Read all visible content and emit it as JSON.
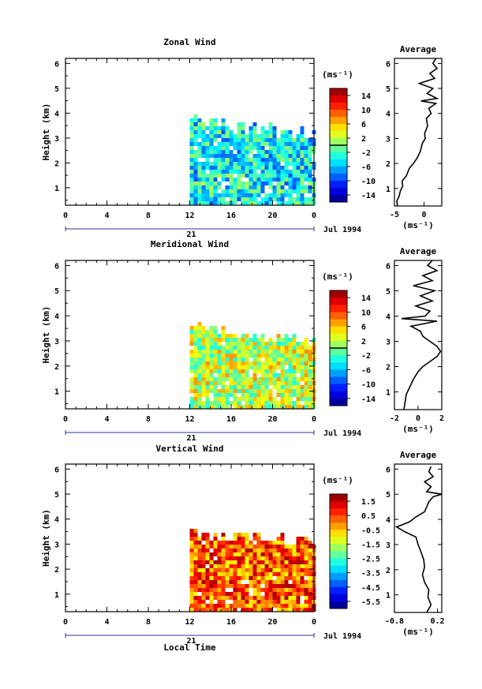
{
  "figure": {
    "date_label": "Jul 1994",
    "day_label": "21",
    "xlabel": "Local Time",
    "ylabel": "Height (km)",
    "avg_title": "Average",
    "units_label": "(ms⁻¹)",
    "avg_xlabel": "(ms⁻¹)"
  },
  "chart_data": [
    {
      "type": "heatmap",
      "name": "zonal",
      "title": "Zonal Wind",
      "x_ticks": [
        "0",
        "4",
        "8",
        "12",
        "16",
        "20",
        "0"
      ],
      "y_ticks": [
        "1",
        "2",
        "3",
        "4",
        "5",
        "6"
      ],
      "xlim": [
        0,
        24
      ],
      "ylim": [
        0.3,
        6.2
      ],
      "colorbar": {
        "min": -16,
        "max": 16,
        "ticks": [
          "14",
          "10",
          "6",
          "2",
          "-2",
          "-6",
          "-10",
          "-14"
        ],
        "zero_line": 0
      },
      "data_region": {
        "x_start": 12,
        "x_end": 24,
        "top_km": [
          3.8,
          3.2
        ],
        "typical_value": -4,
        "colormap": "jet"
      },
      "average": {
        "xlim": [
          -5,
          3
        ],
        "x_ticks": [
          "-5",
          "0"
        ],
        "profile": [
          [
            0.3,
            -4.5
          ],
          [
            0.5,
            -4.6
          ],
          [
            0.7,
            -4.2
          ],
          [
            0.9,
            -4.0
          ],
          [
            1.1,
            -3.6
          ],
          [
            1.3,
            -3.7
          ],
          [
            1.5,
            -3.0
          ],
          [
            1.8,
            -2.5
          ],
          [
            2.0,
            -1.8
          ],
          [
            2.2,
            -1.2
          ],
          [
            2.5,
            -0.6
          ],
          [
            2.8,
            -0.3
          ],
          [
            3.0,
            0.2
          ],
          [
            3.2,
            0.1
          ],
          [
            3.5,
            0.6
          ],
          [
            3.8,
            0.4
          ],
          [
            4.0,
            1.2
          ],
          [
            4.2,
            0.8
          ],
          [
            4.4,
            2.0
          ],
          [
            4.5,
            -0.5
          ],
          [
            4.6,
            2.2
          ],
          [
            4.8,
            0.5
          ],
          [
            5.0,
            1.5
          ],
          [
            5.2,
            -0.8
          ],
          [
            5.4,
            1.8
          ],
          [
            5.6,
            1.0
          ],
          [
            5.8,
            2.2
          ],
          [
            6.0,
            1.5
          ],
          [
            6.2,
            2.0
          ]
        ]
      }
    },
    {
      "type": "heatmap",
      "name": "meridional",
      "title": "Meridional Wind",
      "x_ticks": [
        "0",
        "4",
        "8",
        "12",
        "16",
        "20",
        "0"
      ],
      "y_ticks": [
        "1",
        "2",
        "3",
        "4",
        "5",
        "6"
      ],
      "xlim": [
        0,
        24
      ],
      "ylim": [
        0.3,
        6.2
      ],
      "colorbar": {
        "min": -16,
        "max": 16,
        "ticks": [
          "14",
          "10",
          "6",
          "2",
          "-2",
          "-6",
          "-10",
          "-14"
        ],
        "zero_line": 0
      },
      "data_region": {
        "x_start": 12,
        "x_end": 24,
        "top_km": [
          3.6,
          3.0
        ],
        "typical_value": 2,
        "colormap": "jet"
      },
      "average": {
        "xlim": [
          -2,
          2
        ],
        "x_ticks": [
          "-2",
          "0",
          "2"
        ],
        "profile": [
          [
            0.3,
            -1.2
          ],
          [
            0.6,
            -1.1
          ],
          [
            0.9,
            -1.0
          ],
          [
            1.2,
            -0.7
          ],
          [
            1.5,
            -0.4
          ],
          [
            1.8,
            0.0
          ],
          [
            2.0,
            0.4
          ],
          [
            2.2,
            1.0
          ],
          [
            2.4,
            1.6
          ],
          [
            2.6,
            1.9
          ],
          [
            2.8,
            1.6
          ],
          [
            3.0,
            1.0
          ],
          [
            3.2,
            0.4
          ],
          [
            3.4,
            0.2
          ],
          [
            3.6,
            -0.6
          ],
          [
            3.8,
            1.6
          ],
          [
            3.9,
            -1.4
          ],
          [
            4.0,
            0.6
          ],
          [
            4.2,
            1.0
          ],
          [
            4.4,
            -0.2
          ],
          [
            4.6,
            1.2
          ],
          [
            4.8,
            0.2
          ],
          [
            5.0,
            1.4
          ],
          [
            5.2,
            -0.4
          ],
          [
            5.4,
            1.2
          ],
          [
            5.6,
            0.4
          ],
          [
            5.8,
            1.6
          ],
          [
            6.0,
            0.8
          ],
          [
            6.2,
            1.2
          ]
        ]
      }
    },
    {
      "type": "heatmap",
      "name": "vertical",
      "title": "Vertical Wind",
      "x_ticks": [
        "0",
        "4",
        "8",
        "12",
        "16",
        "20",
        "0"
      ],
      "y_ticks": [
        "1",
        "2",
        "3",
        "4",
        "5",
        "6"
      ],
      "xlim": [
        0,
        24
      ],
      "ylim": [
        0.3,
        6.2
      ],
      "colorbar": {
        "min": -6,
        "max": 2,
        "ticks": [
          "1.5",
          "0.5",
          "-0.5",
          "-1.5",
          "-2.5",
          "-3.5",
          "-4.5",
          "-5.5"
        ],
        "zero_line": null
      },
      "data_region": {
        "x_start": 12,
        "x_end": 24,
        "top_km": [
          3.5,
          3.2
        ],
        "typical_value": 0.3,
        "colormap": "jet"
      },
      "average": {
        "xlim": [
          -0.8,
          0.3
        ],
        "x_ticks": [
          "-0.8",
          "0.2"
        ],
        "profile": [
          [
            0.3,
            -0.05
          ],
          [
            0.6,
            0.05
          ],
          [
            0.9,
            -0.02
          ],
          [
            1.2,
            0.0
          ],
          [
            1.5,
            -0.1
          ],
          [
            1.8,
            -0.15
          ],
          [
            2.1,
            -0.1
          ],
          [
            2.4,
            -0.12
          ],
          [
            2.7,
            -0.18
          ],
          [
            3.0,
            -0.25
          ],
          [
            3.3,
            -0.3
          ],
          [
            3.5,
            -0.55
          ],
          [
            3.7,
            -0.75
          ],
          [
            3.9,
            -0.45
          ],
          [
            4.1,
            -0.3
          ],
          [
            4.3,
            -0.1
          ],
          [
            4.5,
            -0.05
          ],
          [
            4.7,
            0.0
          ],
          [
            4.9,
            0.1
          ],
          [
            5.0,
            0.3
          ],
          [
            5.1,
            -0.05
          ],
          [
            5.3,
            0.05
          ],
          [
            5.5,
            -0.1
          ],
          [
            5.7,
            0.1
          ],
          [
            5.9,
            0.0
          ],
          [
            6.1,
            0.05
          ]
        ]
      }
    }
  ]
}
